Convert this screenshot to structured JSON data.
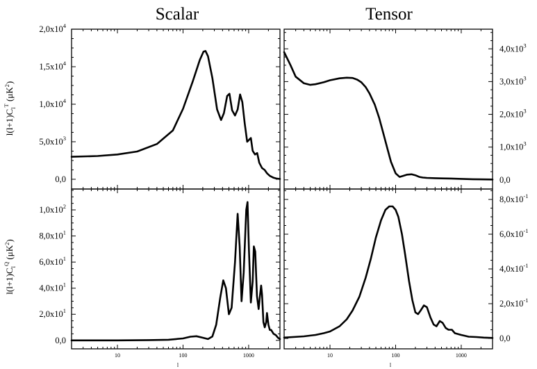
{
  "column_titles": [
    "Scalar",
    "Tensor"
  ],
  "ylabels": {
    "top": {
      "pre": "l(l+1)C",
      "sub": "l",
      "sup": "T",
      "post": " (μK",
      "unit_sup": "2",
      "end": ")"
    },
    "bottom": {
      "pre": "l(l+1)C",
      "sub": "l",
      "sup": "Q",
      "post": " (μK",
      "unit_sup": "2",
      "end": ")"
    }
  },
  "xlabel": "l",
  "chart_data": [
    {
      "type": "line",
      "title": "Scalar",
      "xscale": "log",
      "xlim": [
        2,
        3000
      ],
      "ylim": [
        -1300,
        20000
      ],
      "ylabel": "l(l+1)C_l^T (μK^2)",
      "yaxis_side": "left",
      "xticks": [
        {
          "v": 10,
          "label": "10"
        },
        {
          "v": 100,
          "label": "100"
        },
        {
          "v": 1000,
          "label": "1000"
        }
      ],
      "xticks_labeled": false,
      "yticks": [
        {
          "v": 0,
          "label": "0,0"
        },
        {
          "v": 5000,
          "label": "5,0x10",
          "exp": "3"
        },
        {
          "v": 10000,
          "label": "1,0x10",
          "exp": "4"
        },
        {
          "v": 15000,
          "label": "1,5x10",
          "exp": "4"
        },
        {
          "v": 20000,
          "label": "2,0x10",
          "exp": "4"
        }
      ],
      "series": [
        {
          "x": [
            2,
            5,
            10,
            20,
            40,
            70,
            100,
            140,
            180,
            205,
            220,
            240,
            280,
            330,
            380,
            420,
            470,
            510,
            560,
            620,
            680,
            740,
            800,
            870,
            950,
            1000,
            1080,
            1150,
            1250,
            1350,
            1450,
            1600,
            1750,
            1900,
            2100,
            2400,
            2700,
            3000
          ],
          "y": [
            3000,
            3100,
            3300,
            3700,
            4700,
            6500,
            9400,
            13000,
            15900,
            17000,
            17100,
            16400,
            13500,
            9300,
            7900,
            8800,
            11100,
            11400,
            9200,
            8500,
            9300,
            11300,
            10300,
            7500,
            5000,
            5200,
            5500,
            3800,
            3300,
            3500,
            2200,
            1500,
            1250,
            800,
            450,
            200,
            80,
            40
          ]
        }
      ]
    },
    {
      "type": "line",
      "title": "Tensor",
      "xscale": "log",
      "xlim": [
        2,
        3000
      ],
      "ylim": [
        -280,
        4600
      ],
      "yaxis_side": "right",
      "xticks": [
        {
          "v": 10,
          "label": "10"
        },
        {
          "v": 100,
          "label": "100"
        },
        {
          "v": 1000,
          "label": "1000"
        }
      ],
      "xticks_labeled": false,
      "yticks": [
        {
          "v": 0,
          "label": "0,0"
        },
        {
          "v": 1000,
          "label": "1,0x10",
          "exp": "3"
        },
        {
          "v": 2000,
          "label": "2,0x10",
          "exp": "3"
        },
        {
          "v": 3000,
          "label": "3,0x10",
          "exp": "3"
        },
        {
          "v": 4000,
          "label": "4,0x10",
          "exp": "3"
        }
      ],
      "series": [
        {
          "x": [
            2,
            2.5,
            3,
            4,
            5,
            6,
            8,
            10,
            14,
            18,
            22,
            26,
            30,
            35,
            40,
            48,
            56,
            65,
            75,
            85,
            100,
            115,
            130,
            150,
            175,
            200,
            230,
            260,
            300,
            400,
            500,
            700,
            1000,
            1500,
            2000,
            3000
          ],
          "y": [
            3900,
            3500,
            3150,
            2950,
            2900,
            2920,
            2980,
            3040,
            3100,
            3120,
            3110,
            3060,
            2980,
            2830,
            2640,
            2300,
            1900,
            1420,
            950,
            550,
            200,
            90,
            120,
            160,
            170,
            140,
            90,
            70,
            60,
            50,
            45,
            40,
            30,
            20,
            15,
            10
          ]
        }
      ]
    },
    {
      "type": "line",
      "title": "",
      "xscale": "log",
      "xlim": [
        2,
        3000
      ],
      "ylim": [
        -6.5,
        116
      ],
      "ylabel": "l(l+1)C_l^Q (μK^2)",
      "xlabel": "l",
      "yaxis_side": "left",
      "xticks": [
        {
          "v": 10,
          "label": "10"
        },
        {
          "v": 100,
          "label": "100"
        },
        {
          "v": 1000,
          "label": "1000"
        }
      ],
      "xticks_labeled": true,
      "yticks": [
        {
          "v": 0,
          "label": "0,0"
        },
        {
          "v": 20,
          "label": "2,0x10",
          "exp": "1"
        },
        {
          "v": 40,
          "label": "4,0x10",
          "exp": "1"
        },
        {
          "v": 60,
          "label": "6,0x10",
          "exp": "1"
        },
        {
          "v": 80,
          "label": "8,0x10",
          "exp": "1"
        },
        {
          "v": 100,
          "label": "1,0x10",
          "exp": "2"
        }
      ],
      "series": [
        {
          "x": [
            2,
            10,
            30,
            60,
            100,
            130,
            160,
            200,
            240,
            280,
            320,
            370,
            410,
            450,
            500,
            550,
            620,
            680,
            730,
            780,
            840,
            920,
            960,
            1010,
            1080,
            1150,
            1200,
            1260,
            1340,
            1420,
            1480,
            1550,
            1600,
            1680,
            1760,
            1850,
            1900,
            2000,
            2100,
            2200,
            2400,
            2600,
            2800,
            3000
          ],
          "y": [
            0,
            0,
            0.2,
            0.5,
            1.5,
            2.8,
            3.2,
            2.0,
            1.0,
            3.0,
            12,
            33,
            46,
            40,
            20,
            25,
            60,
            97,
            72,
            30,
            52,
            100,
            106,
            70,
            29,
            45,
            72,
            68,
            34,
            24,
            33,
            42,
            35,
            14,
            10,
            14,
            21,
            12,
            8,
            8,
            5,
            4,
            2,
            1
          ]
        }
      ]
    },
    {
      "type": "line",
      "title": "",
      "xscale": "log",
      "xlim": [
        2,
        3000
      ],
      "ylim": [
        -0.06,
        0.86
      ],
      "xlabel": "l",
      "yaxis_side": "right",
      "xticks": [
        {
          "v": 10,
          "label": "10"
        },
        {
          "v": 100,
          "label": "100"
        },
        {
          "v": 1000,
          "label": "1000"
        }
      ],
      "xticks_labeled": true,
      "yticks": [
        {
          "v": 0,
          "label": "0,0"
        },
        {
          "v": 0.2,
          "label": "2,0x10",
          "exp": "-1"
        },
        {
          "v": 0.4,
          "label": "4,0x10",
          "exp": "-1"
        },
        {
          "v": 0.6,
          "label": "6,0x10",
          "exp": "-1"
        },
        {
          "v": 0.8,
          "label": "8,0x10",
          "exp": "-1"
        }
      ],
      "series": [
        {
          "x": [
            2,
            4,
            6,
            8,
            10,
            14,
            18,
            22,
            28,
            35,
            42,
            50,
            60,
            70,
            80,
            90,
            100,
            110,
            125,
            140,
            160,
            180,
            200,
            220,
            240,
            270,
            300,
            340,
            380,
            420,
            470,
            520,
            580,
            640,
            720,
            800,
            1000,
            1300,
            1700,
            2200,
            3000
          ],
          "y": [
            0.005,
            0.012,
            0.02,
            0.03,
            0.04,
            0.07,
            0.11,
            0.16,
            0.24,
            0.35,
            0.46,
            0.58,
            0.68,
            0.74,
            0.76,
            0.76,
            0.74,
            0.7,
            0.6,
            0.48,
            0.33,
            0.22,
            0.15,
            0.14,
            0.16,
            0.19,
            0.18,
            0.12,
            0.08,
            0.07,
            0.1,
            0.09,
            0.06,
            0.05,
            0.05,
            0.03,
            0.02,
            0.01,
            0.008,
            0.005,
            0.003
          ]
        }
      ]
    }
  ]
}
